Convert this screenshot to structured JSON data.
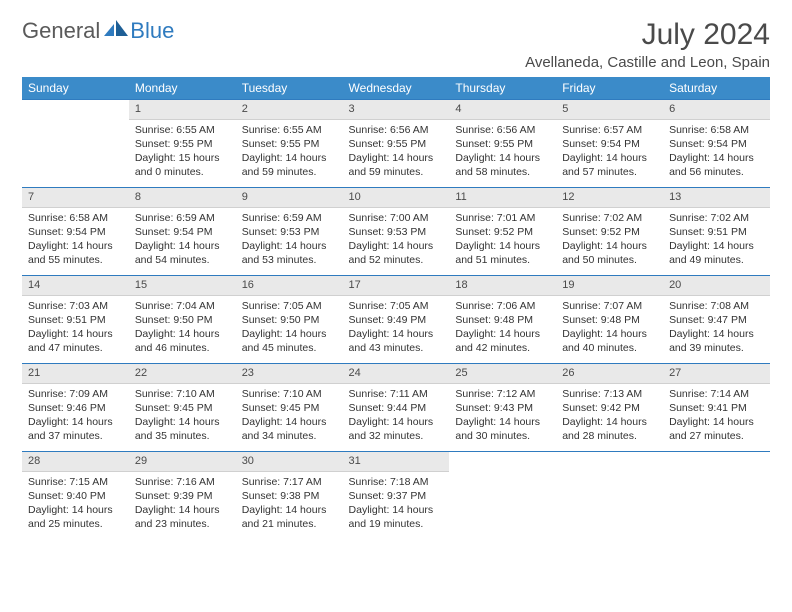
{
  "brand": {
    "name1": "General",
    "name2": "Blue"
  },
  "title": "July 2024",
  "location": "Avellaneda, Castille and Leon, Spain",
  "colors": {
    "header_bg": "#3b8bc9",
    "header_text": "#ffffff",
    "daynum_bg": "#e9e9e9",
    "week_divider": "#2f7bbf",
    "text": "#333333",
    "logo_gray": "#5a5a5a",
    "logo_blue": "#2f7bbf"
  },
  "dayNames": [
    "Sunday",
    "Monday",
    "Tuesday",
    "Wednesday",
    "Thursday",
    "Friday",
    "Saturday"
  ],
  "firstDayIndex": 1,
  "daysInMonth": 31,
  "days": {
    "1": {
      "sunrise": "6:55 AM",
      "sunset": "9:55 PM",
      "daylight": "15 hours and 0 minutes."
    },
    "2": {
      "sunrise": "6:55 AM",
      "sunset": "9:55 PM",
      "daylight": "14 hours and 59 minutes."
    },
    "3": {
      "sunrise": "6:56 AM",
      "sunset": "9:55 PM",
      "daylight": "14 hours and 59 minutes."
    },
    "4": {
      "sunrise": "6:56 AM",
      "sunset": "9:55 PM",
      "daylight": "14 hours and 58 minutes."
    },
    "5": {
      "sunrise": "6:57 AM",
      "sunset": "9:54 PM",
      "daylight": "14 hours and 57 minutes."
    },
    "6": {
      "sunrise": "6:58 AM",
      "sunset": "9:54 PM",
      "daylight": "14 hours and 56 minutes."
    },
    "7": {
      "sunrise": "6:58 AM",
      "sunset": "9:54 PM",
      "daylight": "14 hours and 55 minutes."
    },
    "8": {
      "sunrise": "6:59 AM",
      "sunset": "9:54 PM",
      "daylight": "14 hours and 54 minutes."
    },
    "9": {
      "sunrise": "6:59 AM",
      "sunset": "9:53 PM",
      "daylight": "14 hours and 53 minutes."
    },
    "10": {
      "sunrise": "7:00 AM",
      "sunset": "9:53 PM",
      "daylight": "14 hours and 52 minutes."
    },
    "11": {
      "sunrise": "7:01 AM",
      "sunset": "9:52 PM",
      "daylight": "14 hours and 51 minutes."
    },
    "12": {
      "sunrise": "7:02 AM",
      "sunset": "9:52 PM",
      "daylight": "14 hours and 50 minutes."
    },
    "13": {
      "sunrise": "7:02 AM",
      "sunset": "9:51 PM",
      "daylight": "14 hours and 49 minutes."
    },
    "14": {
      "sunrise": "7:03 AM",
      "sunset": "9:51 PM",
      "daylight": "14 hours and 47 minutes."
    },
    "15": {
      "sunrise": "7:04 AM",
      "sunset": "9:50 PM",
      "daylight": "14 hours and 46 minutes."
    },
    "16": {
      "sunrise": "7:05 AM",
      "sunset": "9:50 PM",
      "daylight": "14 hours and 45 minutes."
    },
    "17": {
      "sunrise": "7:05 AM",
      "sunset": "9:49 PM",
      "daylight": "14 hours and 43 minutes."
    },
    "18": {
      "sunrise": "7:06 AM",
      "sunset": "9:48 PM",
      "daylight": "14 hours and 42 minutes."
    },
    "19": {
      "sunrise": "7:07 AM",
      "sunset": "9:48 PM",
      "daylight": "14 hours and 40 minutes."
    },
    "20": {
      "sunrise": "7:08 AM",
      "sunset": "9:47 PM",
      "daylight": "14 hours and 39 minutes."
    },
    "21": {
      "sunrise": "7:09 AM",
      "sunset": "9:46 PM",
      "daylight": "14 hours and 37 minutes."
    },
    "22": {
      "sunrise": "7:10 AM",
      "sunset": "9:45 PM",
      "daylight": "14 hours and 35 minutes."
    },
    "23": {
      "sunrise": "7:10 AM",
      "sunset": "9:45 PM",
      "daylight": "14 hours and 34 minutes."
    },
    "24": {
      "sunrise": "7:11 AM",
      "sunset": "9:44 PM",
      "daylight": "14 hours and 32 minutes."
    },
    "25": {
      "sunrise": "7:12 AM",
      "sunset": "9:43 PM",
      "daylight": "14 hours and 30 minutes."
    },
    "26": {
      "sunrise": "7:13 AM",
      "sunset": "9:42 PM",
      "daylight": "14 hours and 28 minutes."
    },
    "27": {
      "sunrise": "7:14 AM",
      "sunset": "9:41 PM",
      "daylight": "14 hours and 27 minutes."
    },
    "28": {
      "sunrise": "7:15 AM",
      "sunset": "9:40 PM",
      "daylight": "14 hours and 25 minutes."
    },
    "29": {
      "sunrise": "7:16 AM",
      "sunset": "9:39 PM",
      "daylight": "14 hours and 23 minutes."
    },
    "30": {
      "sunrise": "7:17 AM",
      "sunset": "9:38 PM",
      "daylight": "14 hours and 21 minutes."
    },
    "31": {
      "sunrise": "7:18 AM",
      "sunset": "9:37 PM",
      "daylight": "14 hours and 19 minutes."
    }
  },
  "labels": {
    "sunrise": "Sunrise:",
    "sunset": "Sunset:",
    "daylight": "Daylight:"
  }
}
